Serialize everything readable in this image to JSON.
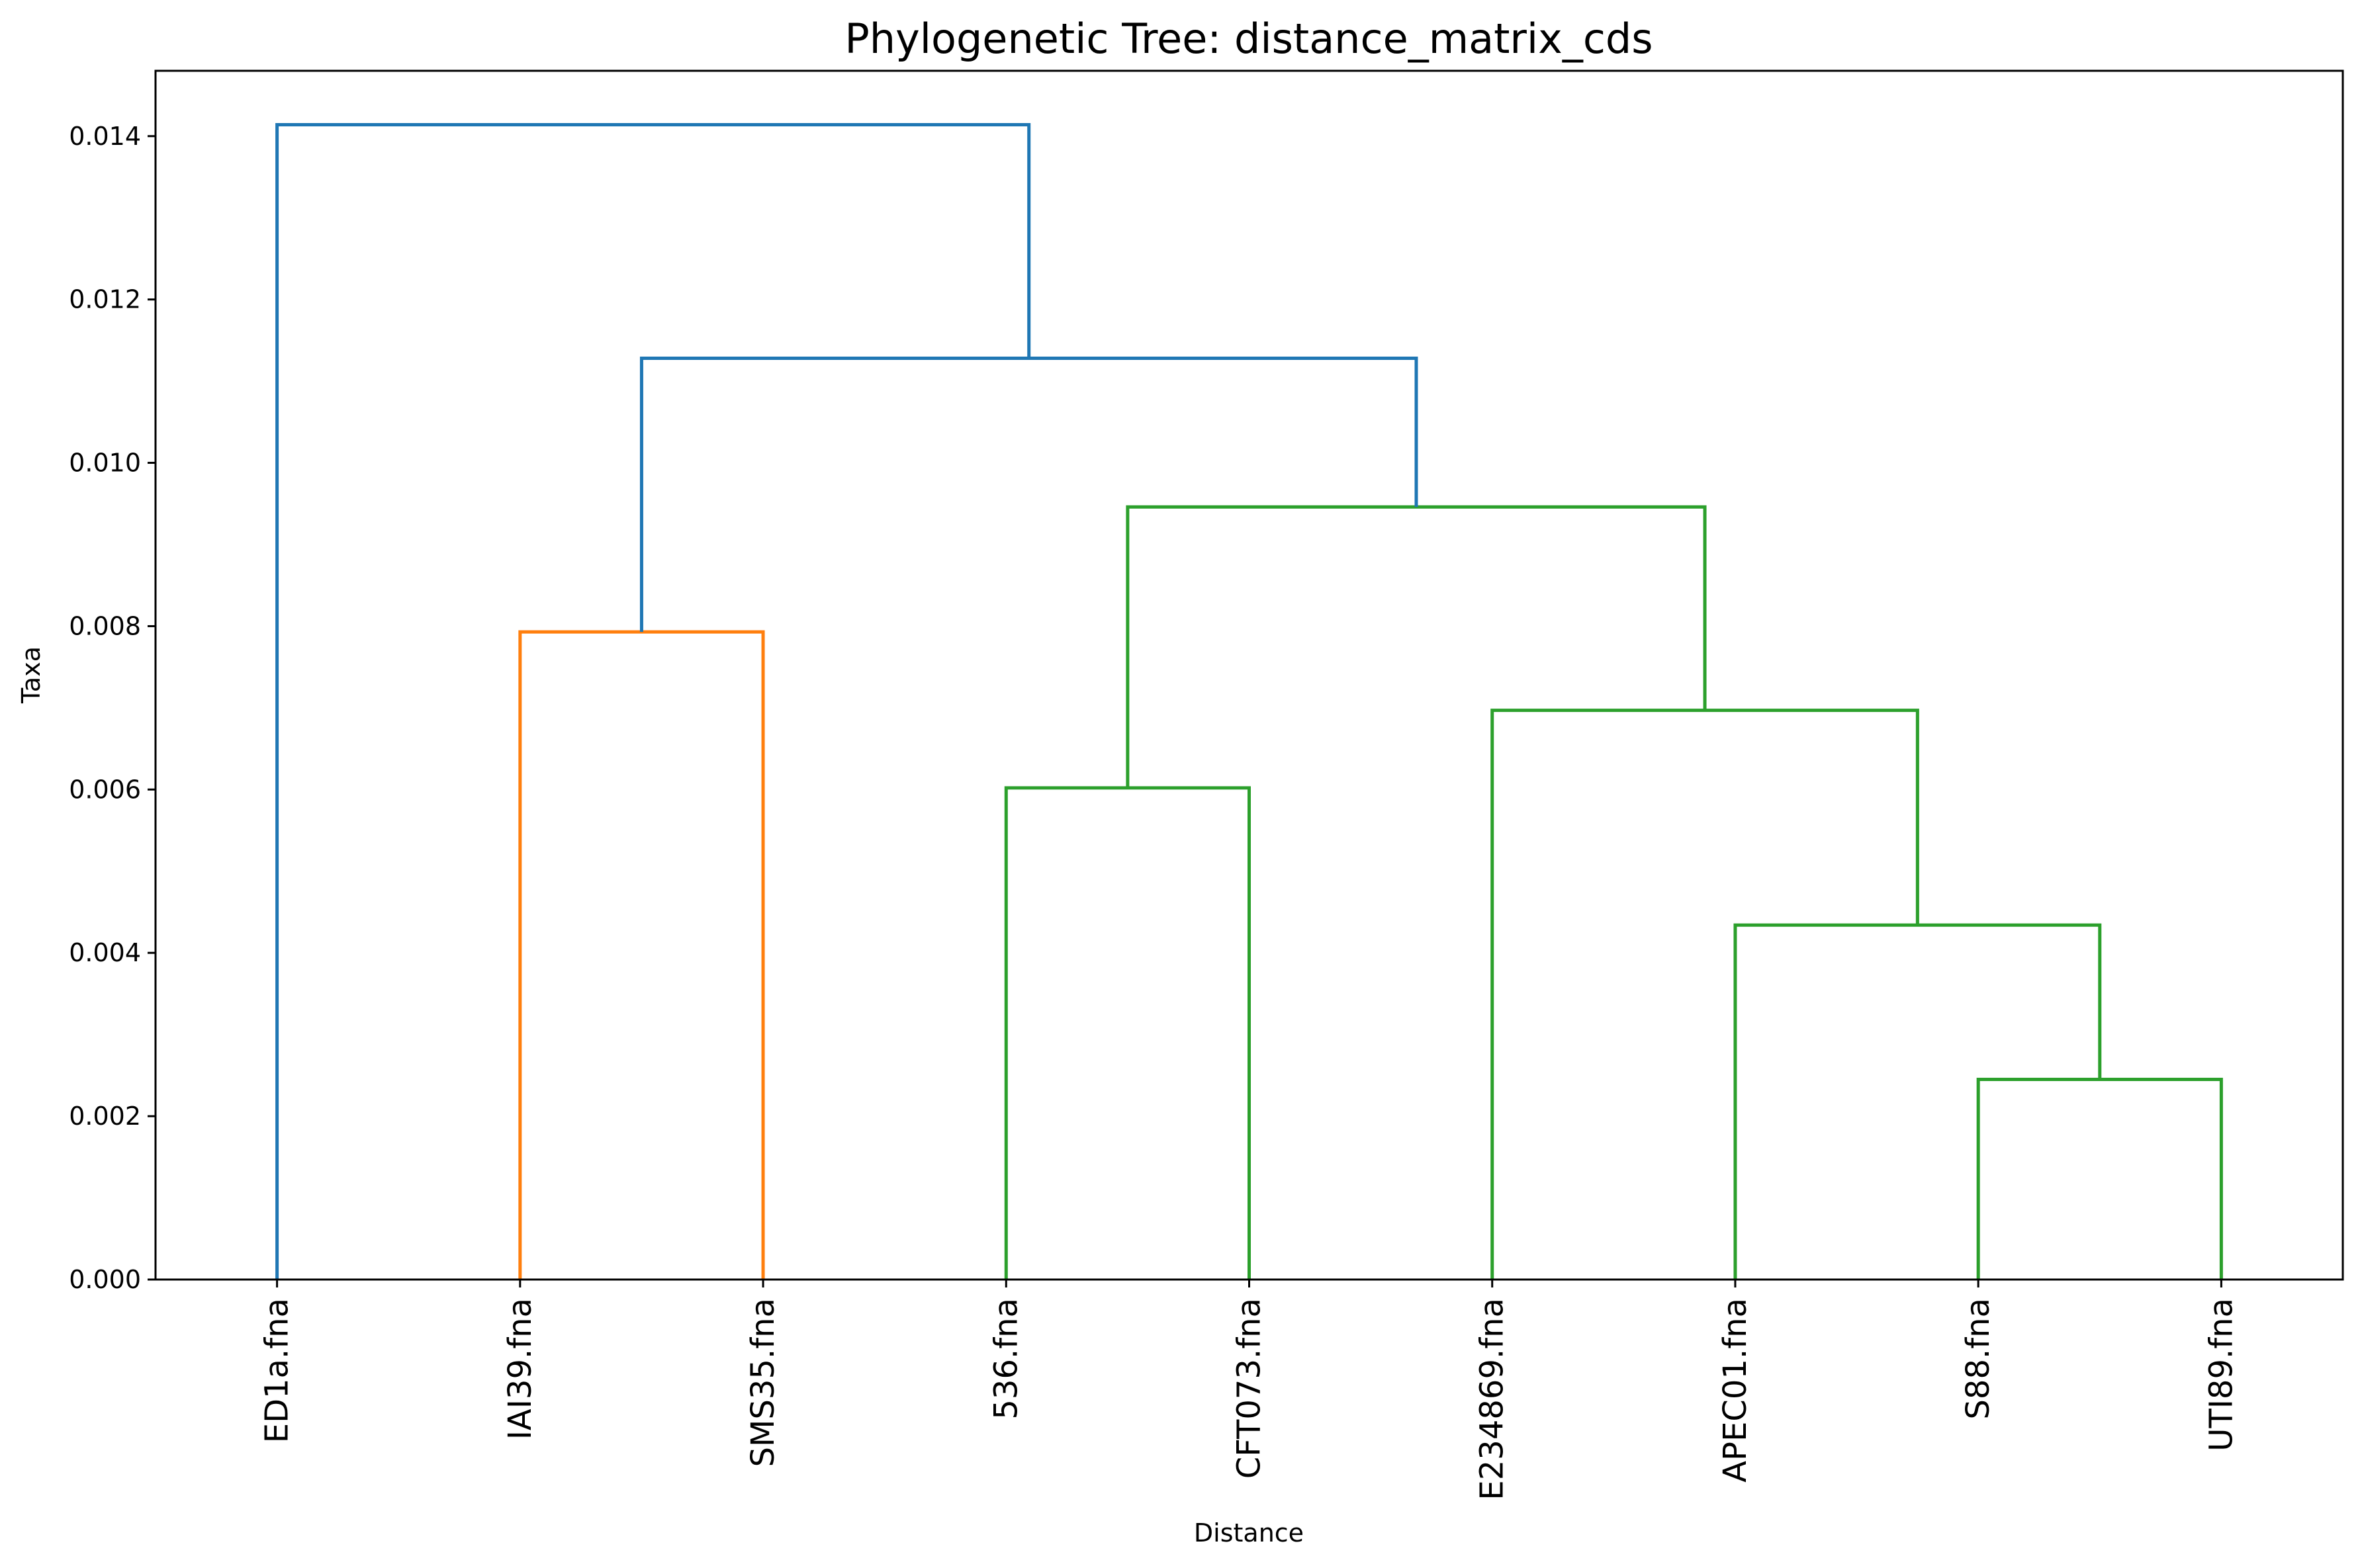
{
  "chart_data": {
    "type": "dendrogram",
    "title": "Phylogenetic Tree: distance_matrix_cds",
    "xlabel": "Distance",
    "ylabel": "Taxa",
    "ylim": [
      0.0,
      0.0148
    ],
    "yticks": [
      0.0,
      0.002,
      0.004,
      0.006,
      0.008,
      0.01,
      0.012,
      0.014
    ],
    "ytick_labels": [
      "0.000",
      "0.002",
      "0.004",
      "0.006",
      "0.008",
      "0.010",
      "0.012",
      "0.014"
    ],
    "leaves": [
      "ED1a.fna",
      "IAI39.fna",
      "SMS35.fna",
      "536.fna",
      "CFT073.fna",
      "E234869.fna",
      "APEC01.fna",
      "S88.fna",
      "UTI89.fna"
    ],
    "merges": [
      {
        "left": "IAI39.fna",
        "right": "SMS35.fna",
        "height": 0.00793,
        "color": "#ff7f0e"
      },
      {
        "left": "536.fna",
        "right": "CFT073.fna",
        "height": 0.00602,
        "color": "#2ca02c"
      },
      {
        "left": "S88.fna",
        "right": "UTI89.fna",
        "height": 0.00245,
        "color": "#2ca02c"
      },
      {
        "left": "APEC01.fna",
        "right": "S88.fna+UTI89.fna",
        "height": 0.00434,
        "color": "#2ca02c"
      },
      {
        "left": "E234869.fna",
        "right": "APEC01.fna+S88.fna+UTI89.fna",
        "height": 0.00697,
        "color": "#2ca02c"
      },
      {
        "left": "536.fna+CFT073.fna",
        "right": "E234869.fna+APEC01.fna+S88.fna+UTI89.fna",
        "height": 0.00946,
        "color": "#2ca02c"
      },
      {
        "left": "IAI39.fna+SMS35.fna",
        "right": "536.fna+CFT073.fna+E234869.fna+APEC01.fna+S88.fna+UTI89.fna",
        "height": 0.01128,
        "color": "#1f77b4"
      },
      {
        "left": "ED1a.fna",
        "right": "IAI39.fna+SMS35.fna+536.fna+CFT073.fna+E234869.fna+APEC01.fna+S88.fna+UTI89.fna",
        "height": 0.01414,
        "color": "#1f77b4"
      }
    ],
    "colors": {
      "orange": "#ff7f0e",
      "green": "#2ca02c",
      "blue": "#1f77b4",
      "axes": "#000000"
    },
    "grid": false,
    "legend": "none"
  }
}
